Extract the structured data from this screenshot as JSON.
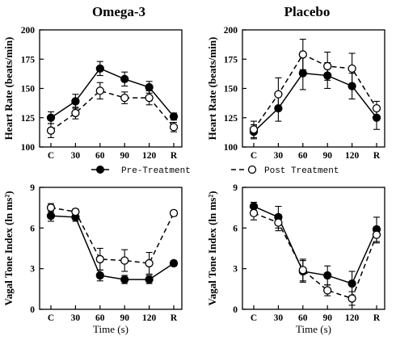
{
  "chart_data": [
    {
      "type": "line",
      "title": "Omega-3",
      "ylabel": "Heart Rate (beats/min)",
      "xlabel": "",
      "categories": [
        "C",
        "30",
        "60",
        "90",
        "120",
        "R"
      ],
      "ylim": [
        100,
        200
      ],
      "yticks": [
        100,
        125,
        150,
        175,
        200
      ],
      "series": [
        {
          "name": "Pre-Treatment",
          "marker": "filled-circle",
          "line": "solid",
          "color": "#000000",
          "values": [
            125,
            139,
            167,
            158,
            151,
            126
          ],
          "errors": [
            5,
            6,
            6,
            6,
            5,
            3
          ]
        },
        {
          "name": "Post Treatment",
          "marker": "open-circle",
          "line": "dashed",
          "color": "#000000",
          "values": [
            114,
            129,
            148,
            142,
            142,
            117
          ],
          "errors": [
            6,
            5,
            7,
            5,
            6,
            4
          ]
        }
      ]
    },
    {
      "type": "line",
      "title": "Placebo",
      "ylabel": "Heart Rate (beats/min)",
      "xlabel": "",
      "categories": [
        "C",
        "30",
        "60",
        "90",
        "120",
        "R"
      ],
      "ylim": [
        100,
        200
      ],
      "yticks": [
        100,
        125,
        150,
        175,
        200
      ],
      "series": [
        {
          "name": "Pre-Treatment",
          "marker": "filled-circle",
          "line": "solid",
          "color": "#000000",
          "values": [
            113,
            133,
            163,
            161,
            152,
            125
          ],
          "errors": [
            6,
            11,
            14,
            11,
            11,
            10
          ]
        },
        {
          "name": "Post Treatment",
          "marker": "open-circle",
          "line": "dashed",
          "color": "#000000",
          "values": [
            115,
            145,
            179,
            169,
            167,
            133
          ],
          "errors": [
            7,
            14,
            13,
            12,
            13,
            6
          ]
        }
      ]
    },
    {
      "type": "line",
      "title": "",
      "ylabel": "Vagal Tone Index (ln ms²)",
      "xlabel": "Time (s)",
      "categories": [
        "C",
        "30",
        "60",
        "90",
        "120",
        "R"
      ],
      "ylim": [
        0,
        9
      ],
      "yticks": [
        0,
        3,
        6,
        9
      ],
      "series": [
        {
          "name": "Pre-Treatment",
          "marker": "filled-circle",
          "line": "solid",
          "color": "#000000",
          "values": [
            6.9,
            6.8,
            2.5,
            2.2,
            2.2,
            3.4
          ],
          "errors": [
            0.4,
            0.3,
            0.4,
            0.3,
            0.3,
            0.2
          ]
        },
        {
          "name": "Post Treatment",
          "marker": "open-circle",
          "line": "dashed",
          "color": "#000000",
          "values": [
            7.5,
            7.2,
            3.7,
            3.6,
            3.4,
            7.1
          ],
          "errors": [
            0.3,
            0.2,
            0.8,
            0.8,
            0.8,
            0.2
          ]
        }
      ]
    },
    {
      "type": "line",
      "title": "",
      "ylabel": "Vagal Tone Index (ln ms²)",
      "xlabel": "Time (s)",
      "categories": [
        "C",
        "30",
        "60",
        "90",
        "120",
        "R"
      ],
      "ylim": [
        0,
        9
      ],
      "yticks": [
        0,
        3,
        6,
        9
      ],
      "series": [
        {
          "name": "Pre-Treatment",
          "marker": "filled-circle",
          "line": "solid",
          "color": "#000000",
          "values": [
            7.6,
            6.8,
            2.8,
            2.5,
            1.9,
            5.9
          ],
          "errors": [
            0.3,
            0.8,
            0.8,
            0.7,
            0.9,
            0.9
          ]
        },
        {
          "name": "Post Treatment",
          "marker": "open-circle",
          "line": "dashed",
          "color": "#000000",
          "values": [
            7.1,
            6.4,
            2.9,
            1.4,
            0.8,
            5.5
          ],
          "errors": [
            0.5,
            0.6,
            0.8,
            0.4,
            0.5,
            0.6
          ]
        }
      ]
    }
  ],
  "legend": {
    "pre_label": "Pre-Treatment",
    "post_label": "Post Treatment"
  }
}
